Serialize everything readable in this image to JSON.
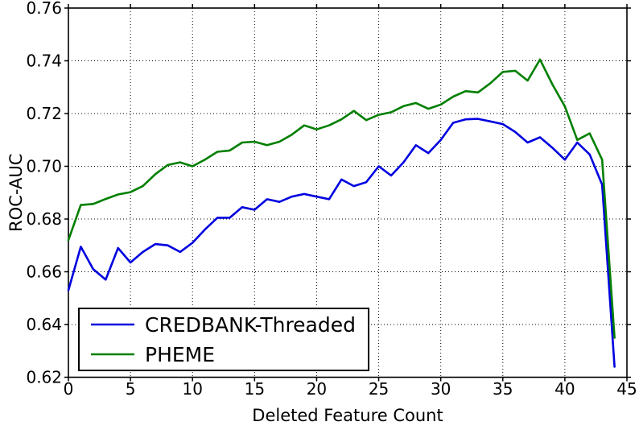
{
  "figure": {
    "background": "#ffffff"
  },
  "chart_data": {
    "type": "line",
    "title": "",
    "xlabel": "Deleted Feature Count",
    "ylabel": "ROC-AUC",
    "xlim": [
      0,
      45
    ],
    "ylim": [
      0.62,
      0.76
    ],
    "xticks": [
      0,
      5,
      10,
      15,
      20,
      25,
      30,
      35,
      40,
      45
    ],
    "yticks": [
      0.62,
      0.64,
      0.66,
      0.68,
      0.7,
      0.72,
      0.74,
      0.76
    ],
    "grid": "dotted-black-both-axes",
    "legend_position": "lower-left",
    "frame_color": "#000000",
    "x": [
      0,
      1,
      2,
      3,
      4,
      5,
      6,
      7,
      8,
      9,
      10,
      11,
      12,
      13,
      14,
      15,
      16,
      17,
      18,
      19,
      20,
      21,
      22,
      23,
      24,
      25,
      26,
      27,
      28,
      29,
      30,
      31,
      32,
      33,
      34,
      35,
      36,
      37,
      38,
      39,
      40,
      41,
      42,
      43,
      44
    ],
    "series": [
      {
        "name": "CREDBANK-Threaded",
        "color": "#0000e0",
        "values": [
          0.653,
          0.6695,
          0.661,
          0.657,
          0.669,
          0.6635,
          0.6675,
          0.6705,
          0.67,
          0.6675,
          0.671,
          0.676,
          0.6805,
          0.6805,
          0.6845,
          0.6835,
          0.6875,
          0.6865,
          0.6885,
          0.6895,
          0.6885,
          0.6875,
          0.695,
          0.6925,
          0.694,
          0.7,
          0.6965,
          0.7015,
          0.708,
          0.705,
          0.71,
          0.7165,
          0.7178,
          0.718,
          0.717,
          0.716,
          0.713,
          0.709,
          0.711,
          0.707,
          0.7025,
          0.709,
          0.7045,
          0.693,
          0.624
        ]
      },
      {
        "name": "PHEME",
        "color": "#007f00",
        "values": [
          0.672,
          0.6853,
          0.6857,
          0.6876,
          0.6893,
          0.6902,
          0.6925,
          0.697,
          0.7005,
          0.7015,
          0.7,
          0.7025,
          0.7055,
          0.706,
          0.709,
          0.7093,
          0.708,
          0.7093,
          0.712,
          0.7155,
          0.714,
          0.7155,
          0.7178,
          0.721,
          0.7175,
          0.7195,
          0.7205,
          0.7228,
          0.724,
          0.7218,
          0.7234,
          0.7264,
          0.7285,
          0.728,
          0.7315,
          0.7358,
          0.7362,
          0.7325,
          0.7405,
          0.731,
          0.7227,
          0.71,
          0.7125,
          0.7025,
          0.635
        ]
      }
    ]
  }
}
